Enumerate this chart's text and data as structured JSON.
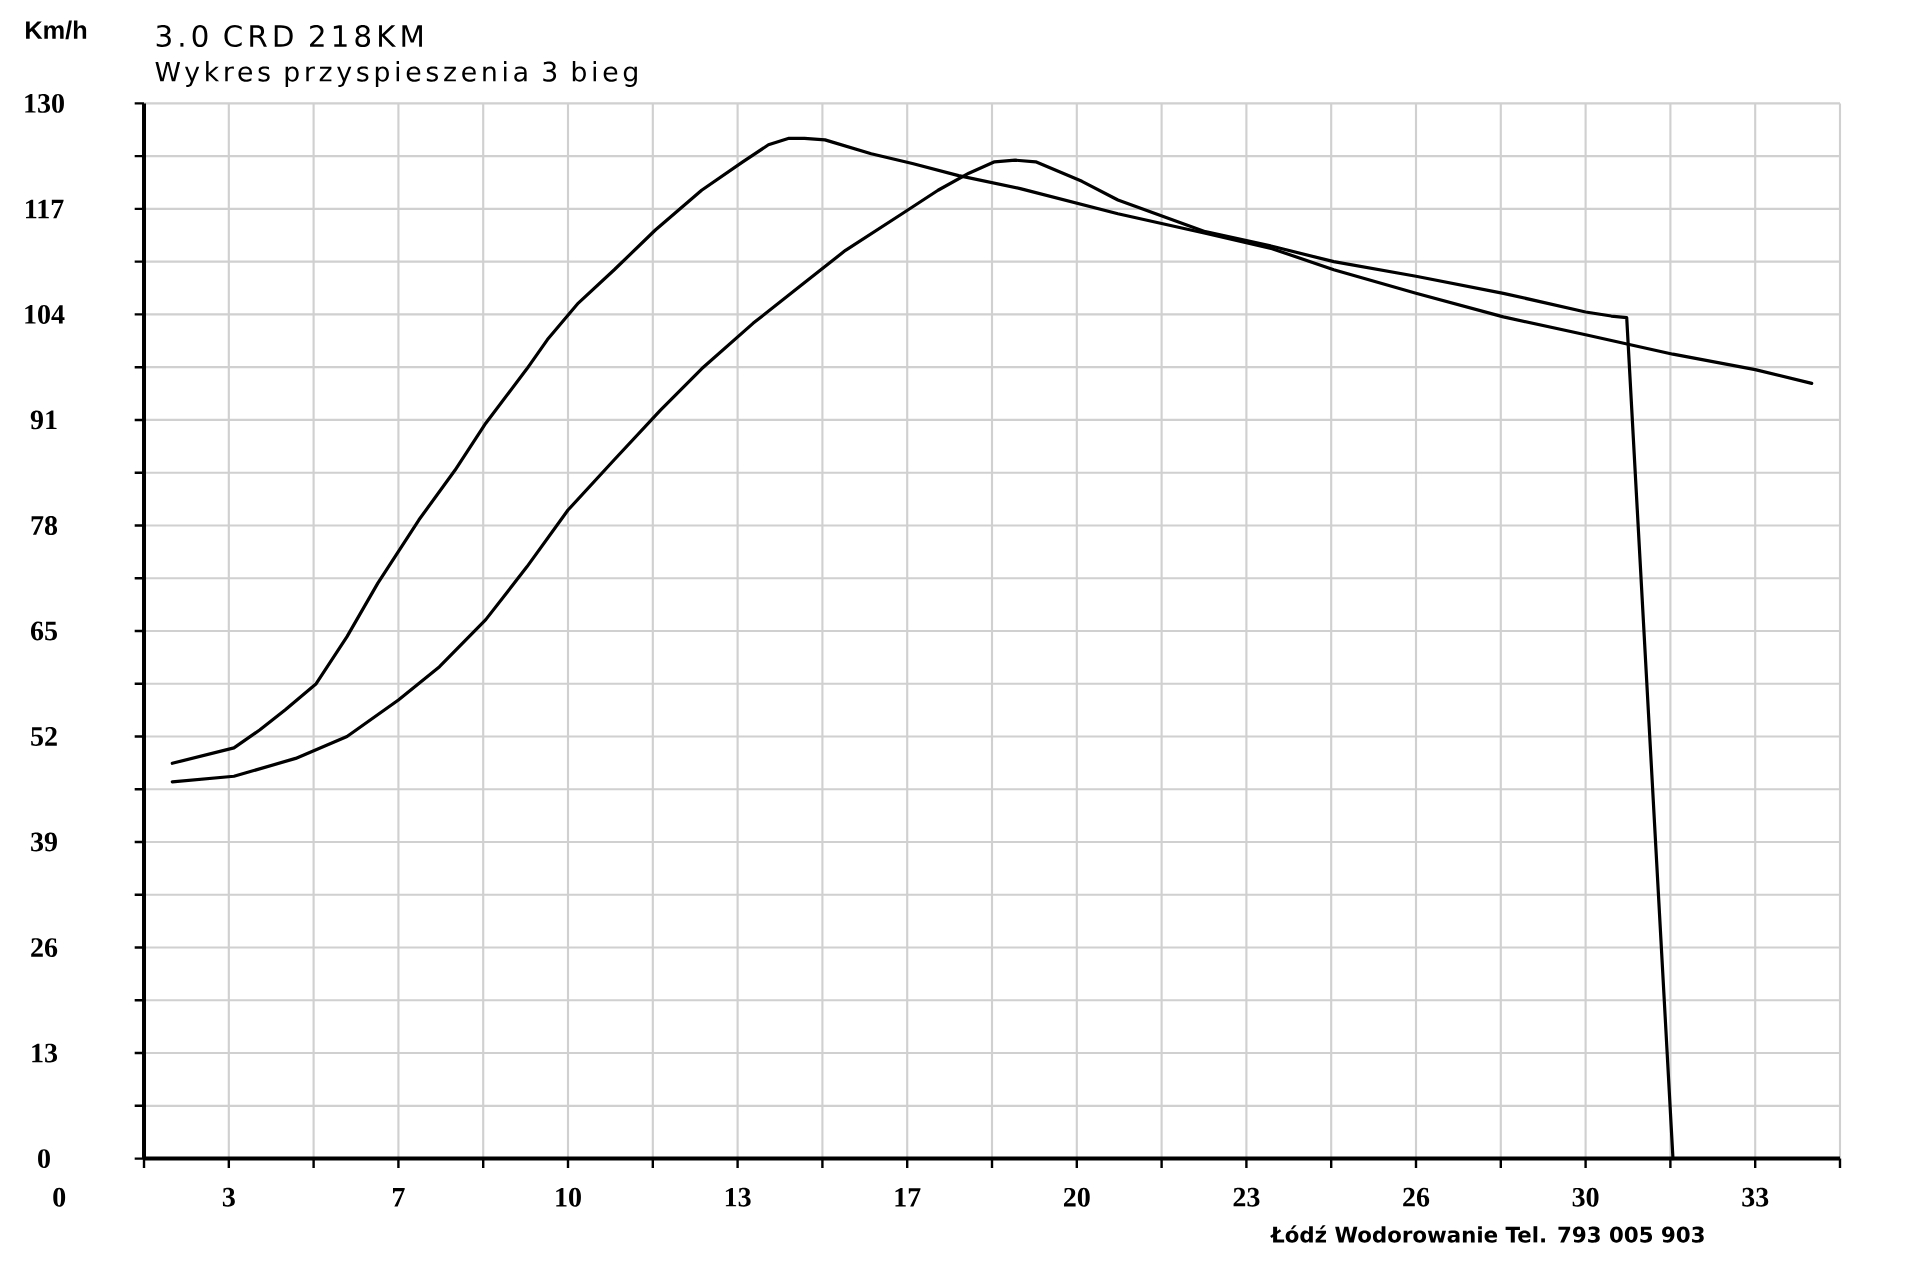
{
  "chart_data": {
    "type": "line",
    "title": "3.0 CRD 218KM",
    "subtitle": "Wykres przyspieszenia 3 bieg",
    "ylabel": "Km/h",
    "annotations": [
      "Łódź Wodorowanie Tel. 793 005 903",
      "0"
    ],
    "xlim": [
      1.65,
      34.65
    ],
    "ylim": [
      0,
      130
    ],
    "xticks": [
      {
        "value": 1.65,
        "label": null
      },
      {
        "value": 3.3,
        "label": "3"
      },
      {
        "value": 4.95,
        "label": null
      },
      {
        "value": 6.6,
        "label": "7"
      },
      {
        "value": 8.25,
        "label": null
      },
      {
        "value": 9.9,
        "label": "10"
      },
      {
        "value": 11.55,
        "label": null
      },
      {
        "value": 13.2,
        "label": "13"
      },
      {
        "value": 14.85,
        "label": null
      },
      {
        "value": 16.5,
        "label": "17"
      },
      {
        "value": 18.15,
        "label": null
      },
      {
        "value": 19.8,
        "label": "20"
      },
      {
        "value": 21.45,
        "label": null
      },
      {
        "value": 23.1,
        "label": "23"
      },
      {
        "value": 24.75,
        "label": null
      },
      {
        "value": 26.4,
        "label": "26"
      },
      {
        "value": 28.05,
        "label": null
      },
      {
        "value": 29.7,
        "label": "30"
      },
      {
        "value": 31.35,
        "label": null
      },
      {
        "value": 33,
        "label": "33"
      },
      {
        "value": 34.65,
        "label": null
      }
    ],
    "yticks": [
      0,
      {
        "value": 6.5,
        "label": null
      },
      13,
      {
        "value": 19.5,
        "label": null
      },
      26,
      {
        "value": 32.5,
        "label": null
      },
      39,
      {
        "value": 45.5,
        "label": null
      },
      52,
      {
        "value": 58.5,
        "label": null
      },
      65,
      {
        "value": 71.5,
        "label": null
      },
      78,
      {
        "value": 84.5,
        "label": null
      },
      91,
      {
        "value": 97.5,
        "label": null
      },
      104,
      {
        "value": 110.5,
        "label": null
      },
      117,
      {
        "value": 123.5,
        "label": null
      },
      130
    ],
    "grid": true,
    "marker": "none",
    "line_style": "solid",
    "series": [
      {
        "color": "#000000",
        "x": [
          2.2,
          3.4,
          3.9,
          4.4,
          5.0,
          5.6,
          6.2,
          7.0,
          7.7,
          8.3,
          9.1,
          9.5,
          10.1,
          10.8,
          11.6,
          12.5,
          13.3,
          13.8,
          14.2,
          14.5,
          14.9,
          15.8,
          16.6,
          17.5,
          18.7,
          20.6,
          22.3,
          23.6,
          24.8,
          26.4,
          28.1,
          29.7,
          31.4,
          33.0,
          34.1
        ],
        "values": [
          48.7,
          50.6,
          52.8,
          55.3,
          58.5,
          64.3,
          70.9,
          78.7,
          84.8,
          90.6,
          97.3,
          100.9,
          105.4,
          109.5,
          114.4,
          119.3,
          122.8,
          124.9,
          125.7,
          125.7,
          125.5,
          123.8,
          122.6,
          121.1,
          119.5,
          116.4,
          114.0,
          112.1,
          109.5,
          106.6,
          103.7,
          101.5,
          99.1,
          97.2,
          95.5
        ]
      },
      {
        "color": "#000000",
        "x": [
          2.2,
          3.4,
          4.6,
          5.6,
          6.6,
          7.4,
          8.3,
          9.1,
          9.9,
          10.8,
          11.7,
          12.5,
          13.5,
          14.4,
          15.3,
          16.4,
          17.1,
          17.7,
          18.2,
          18.6,
          19.0,
          19.9,
          20.6,
          22.3,
          23.6,
          24.8,
          26.4,
          28.1,
          29.7,
          30.2,
          30.5,
          31.4
        ],
        "values": [
          46.4,
          47.1,
          49.3,
          52.0,
          56.5,
          60.6,
          66.4,
          72.9,
          79.9,
          86.1,
          92.2,
          97.3,
          102.9,
          107.4,
          111.9,
          116.4,
          119.3,
          121.4,
          122.8,
          123.0,
          122.8,
          120.4,
          118.1,
          114.2,
          112.4,
          110.5,
          108.7,
          106.6,
          104.3,
          103.8,
          103.6,
          0
        ]
      }
    ]
  }
}
